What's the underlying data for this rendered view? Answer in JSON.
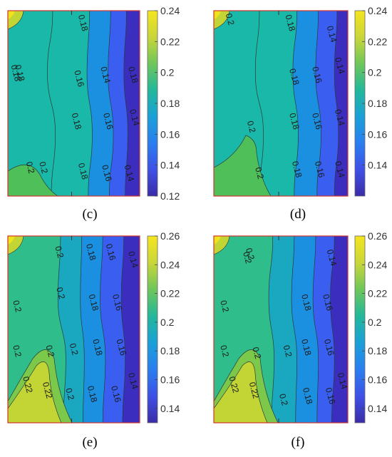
{
  "figure": {
    "panels": [
      {
        "caption": "(c)"
      },
      {
        "caption": "(d)"
      },
      {
        "caption": "(e)"
      },
      {
        "caption": "(f)"
      }
    ]
  },
  "chart_data": [
    {
      "type": "heatmap",
      "caption": "(c)",
      "colorbar": {
        "min": 0.12,
        "max": 0.24,
        "ticks": [
          "0.24",
          "0.22",
          "0.2",
          "0.18",
          "0.16",
          "0.14",
          "0.12"
        ]
      },
      "contour_labels": [
        "0.18",
        "0.18",
        "0.16",
        "0.14",
        "0.18",
        "0.18",
        "0.16",
        "0.14",
        "0.18",
        "0.16",
        "0.14",
        "0.18",
        "0.2",
        "0.2"
      ],
      "levels": [
        {
          "value": 0.24,
          "color": "#f0e31c"
        },
        {
          "value": 0.22,
          "color": "#c2d534"
        },
        {
          "value": 0.2,
          "color": "#4fbf5a"
        },
        {
          "value": 0.18,
          "color": "#1ab8a8"
        },
        {
          "value": 0.16,
          "color": "#1b8fe0"
        },
        {
          "value": 0.14,
          "color": "#3a5ff0"
        },
        {
          "value": 0.12,
          "color": "#3b2ebf"
        }
      ]
    },
    {
      "type": "heatmap",
      "caption": "(d)",
      "colorbar": {
        "min": 0.12,
        "max": 0.24,
        "ticks": [
          "0.24",
          "0.22",
          "0.2",
          "0.18",
          "0.16",
          "0.14"
        ]
      },
      "contour_labels": [
        "0.2",
        "0.18",
        "0.14",
        "0.18",
        "0.16",
        "0.14",
        "0.18",
        "0.16",
        "0.14",
        "0.2",
        "0.18",
        "0.16",
        "0.14",
        "0.2"
      ],
      "levels": [
        {
          "value": 0.24,
          "color": "#f0e31c"
        },
        {
          "value": 0.22,
          "color": "#c2d534"
        },
        {
          "value": 0.2,
          "color": "#4fbf5a"
        },
        {
          "value": 0.18,
          "color": "#1ab8a8"
        },
        {
          "value": 0.16,
          "color": "#1b8fe0"
        },
        {
          "value": 0.14,
          "color": "#3a5ff0"
        },
        {
          "value": 0.12,
          "color": "#3b2ebf"
        }
      ]
    },
    {
      "type": "heatmap",
      "caption": "(e)",
      "colorbar": {
        "min": 0.13,
        "max": 0.26,
        "ticks": [
          "0.26",
          "0.24",
          "0.22",
          "0.2",
          "0.18",
          "0.16",
          "0.14"
        ]
      },
      "contour_labels": [
        "0.2",
        "0.18",
        "0.16",
        "0.14",
        "0.2",
        "0.2",
        "0.18",
        "0.16",
        "0.2",
        "0.2",
        "0.18",
        "0.16",
        "0.2",
        "0.22",
        "0.22",
        "0.2",
        "0.18",
        "0.16",
        "0.14"
      ],
      "levels": [
        {
          "value": 0.26,
          "color": "#f0e31c"
        },
        {
          "value": 0.24,
          "color": "#c2d534"
        },
        {
          "value": 0.22,
          "color": "#7cc84a"
        },
        {
          "value": 0.2,
          "color": "#2fbd8c"
        },
        {
          "value": 0.18,
          "color": "#1aa7c0"
        },
        {
          "value": 0.16,
          "color": "#1b8fe0"
        },
        {
          "value": 0.14,
          "color": "#3a5ff0"
        },
        {
          "value": 0.13,
          "color": "#3b2ebf"
        }
      ]
    },
    {
      "type": "heatmap",
      "caption": "(f)",
      "colorbar": {
        "min": 0.13,
        "max": 0.26,
        "ticks": [
          "0.26",
          "0.24",
          "0.22",
          "0.2",
          "0.18",
          "0.16",
          "0.14"
        ]
      },
      "contour_labels": [
        "0.2",
        "0.2",
        "0.14",
        "0.2",
        "0.18",
        "0.16",
        "0.2",
        "0.2",
        "0.18",
        "0.16",
        "0.2",
        "0.22",
        "0.22",
        "0.2",
        "0.18",
        "0.16",
        "0.14"
      ],
      "levels": [
        {
          "value": 0.26,
          "color": "#f0e31c"
        },
        {
          "value": 0.24,
          "color": "#c2d534"
        },
        {
          "value": 0.22,
          "color": "#7cc84a"
        },
        {
          "value": 0.2,
          "color": "#2fbd8c"
        },
        {
          "value": 0.18,
          "color": "#1aa7c0"
        },
        {
          "value": 0.16,
          "color": "#1b8fe0"
        },
        {
          "value": 0.14,
          "color": "#3a5ff0"
        },
        {
          "value": 0.13,
          "color": "#3b2ebf"
        }
      ]
    }
  ]
}
